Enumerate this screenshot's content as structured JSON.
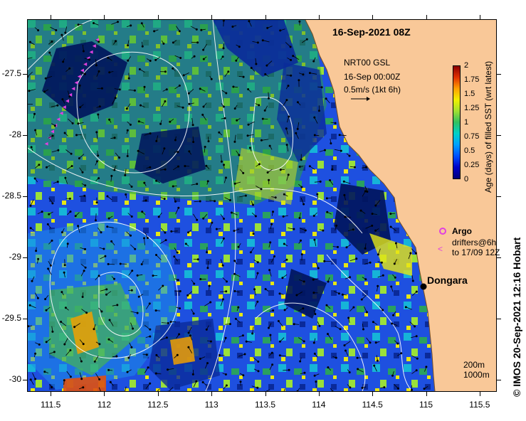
{
  "title": "16-Sep-2021 08Z",
  "product": {
    "line1": "NRT00 GSL",
    "line2": "16-Sep 00:00Z",
    "scale_label": "0.5m/s (1kt 6h)"
  },
  "colorbar": {
    "label": "Age (days) of filled SST (wrt latest)",
    "min": 0,
    "max": 2,
    "ticks": [
      "2",
      "1.75",
      "1.5",
      "1.25",
      "1",
      "0.75",
      "0.5",
      "0.25",
      "0"
    ],
    "colors": [
      "#00007a",
      "#0000c8",
      "#0050ff",
      "#00a0ff",
      "#00d0c8",
      "#30c060",
      "#a0e030",
      "#f0f000",
      "#ffa000",
      "#e03000",
      "#8b0000"
    ]
  },
  "legend": {
    "argo": "Argo",
    "drifters_line1": "drifters@6h",
    "drifters_line2": "to 17/09 12Z"
  },
  "place": {
    "name": "Dongara",
    "lon": 114.93,
    "lat": -29.25
  },
  "contours": {
    "line1": "200m",
    "line2": "1000m"
  },
  "credit": "© IMOS 20-Sep-2021 12:16 Hobart",
  "axes": {
    "lon_ticks": [
      "111.5",
      "112",
      "112.5",
      "113",
      "113.5",
      "114",
      "114.5",
      "115",
      "115.5"
    ],
    "lat_ticks": [
      "-27.5",
      "-28",
      "-28.5",
      "-29",
      "-29.5",
      "-30"
    ],
    "lon_values": [
      111.5,
      112,
      112.5,
      113,
      113.5,
      114,
      114.5,
      115,
      115.5
    ],
    "lat_values": [
      -27.5,
      -28,
      -28.5,
      -29,
      -29.5,
      -30
    ]
  },
  "colors": {
    "land": "#f9c898",
    "ocean_deep": "#1e3ec8",
    "argo": "#e040e0",
    "contour": "#ffffff"
  }
}
